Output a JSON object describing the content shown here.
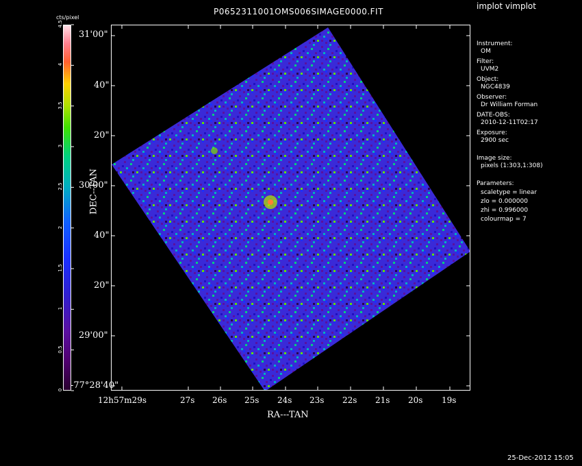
{
  "header": {
    "file_title": "P0652311001OMS006SIMAGE0000.FIT",
    "program_label": "implot vimplot"
  },
  "colorbar": {
    "unit_label": "cts/pixel",
    "ticks": [
      "0",
      "0.5",
      "1",
      "1.5",
      "2",
      "2.5",
      "3",
      "3.5",
      "4",
      "4.5"
    ]
  },
  "axes": {
    "xlabel": "RA---TAN",
    "ylabel": "DEC--TAN",
    "y_ticks": [
      "31'00\"",
      "40\"",
      "20\"",
      "30'00\"",
      "40\"",
      "20\"",
      "29'00\"",
      "-77°28'40\""
    ],
    "x_ticks": [
      "12h57m29s",
      "27s",
      "26s",
      "25s",
      "24s",
      "23s",
      "22s",
      "21s",
      "20s",
      "19s"
    ]
  },
  "info_panel": {
    "instrument_label": "Instrument:",
    "instrument_value": "OM",
    "filter_label": "Filter:",
    "filter_value": "UVM2",
    "object_label": "Object:",
    "object_value": "NGC4839",
    "observer_label": "Observer:",
    "observer_value": "Dr William Forman",
    "date_label": "DATE-OBS:",
    "date_value": "2010-12-11T02:17",
    "exposure_label": "Exposure:",
    "exposure_value": "2900 sec",
    "image_size_label": "Image size:",
    "image_size_value": "pixels (1:303,1:308)",
    "parameters_label": "Parameters:",
    "scaletype": "scaletype = linear",
    "zlo": "zlo = 0.000000",
    "zhi": "zhi = 0.996000",
    "colourmap": "colourmap = 7"
  },
  "footer": {
    "timestamp": "25-Dec-2012 15:05"
  },
  "image_colors": {
    "background": "#000000",
    "low": "#5a10a0",
    "mid": "#1a30ff",
    "high": "#00d080",
    "peak": "#ffd000"
  }
}
